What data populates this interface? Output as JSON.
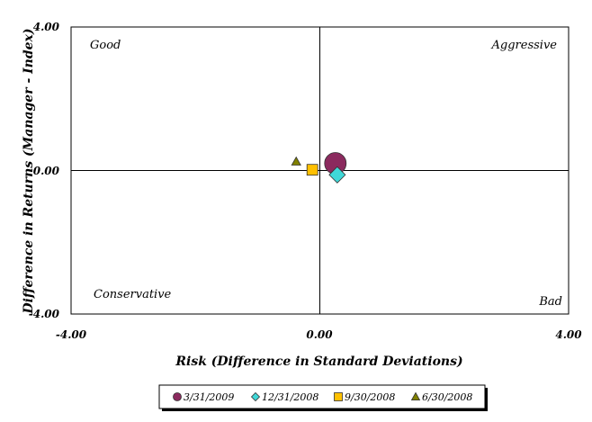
{
  "chart_data": {
    "type": "scatter",
    "xlabel": "Risk (Difference in Standard Deviations)",
    "ylabel": "Difference in Returns (Manager - Index)",
    "xlim": [
      -4,
      4
    ],
    "ylim": [
      -4,
      4
    ],
    "x_ticks": [
      "-4.00",
      "0.00",
      "4.00"
    ],
    "y_ticks": [
      "4.00",
      "0.00",
      "-4.00"
    ],
    "quadrant_labels": {
      "top_left": "Good",
      "top_right": "Aggressive",
      "bottom_left": "Conservative",
      "bottom_right": "Bad"
    },
    "legend_position": "bottom-center",
    "series": [
      {
        "name": "3/31/2009",
        "marker": "circle",
        "color": "#8B2A5E",
        "x": 0.25,
        "y": 0.2
      },
      {
        "name": "12/31/2008",
        "marker": "diamond",
        "color": "#40D8D8",
        "x": 0.28,
        "y": -0.12
      },
      {
        "name": "9/30/2008",
        "marker": "square",
        "color": "#FFC000",
        "x": -0.12,
        "y": 0.02
      },
      {
        "name": "6/30/2008",
        "marker": "triangle",
        "color": "#808000",
        "x": -0.38,
        "y": 0.25
      }
    ]
  }
}
